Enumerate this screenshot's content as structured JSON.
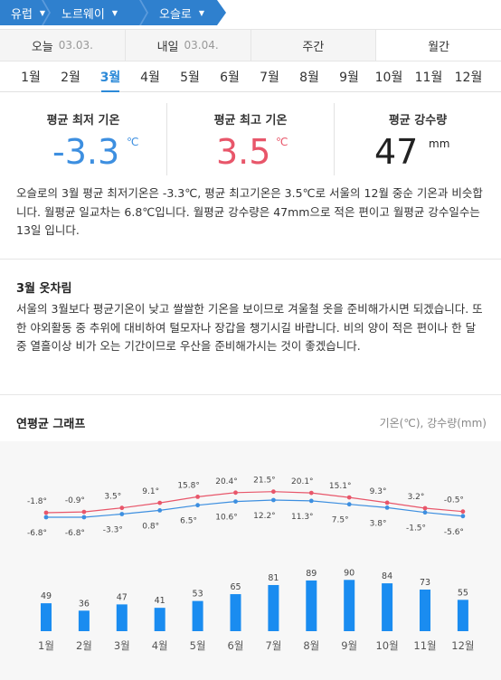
{
  "breadcrumb": [
    {
      "label": "유럽"
    },
    {
      "label": "노르웨이"
    },
    {
      "label": "오슬로"
    }
  ],
  "day_tabs": [
    {
      "label": "오늘",
      "date": "03.03."
    },
    {
      "label": "내일",
      "date": "03.04."
    },
    {
      "label": "주간",
      "date": ""
    },
    {
      "label": "월간",
      "date": ""
    }
  ],
  "months": [
    "1월",
    "2월",
    "3월",
    "4월",
    "5월",
    "6월",
    "7월",
    "8월",
    "9월",
    "10월",
    "11월",
    "12월"
  ],
  "selected_month": "3월",
  "stats": {
    "min": {
      "label": "평균 최저 기온",
      "value": "-3.3",
      "unit": "℃"
    },
    "max": {
      "label": "평균 최고 기온",
      "value": "3.5",
      "unit": "℃"
    },
    "rain": {
      "label": "평균 강수량",
      "value": "47",
      "unit": "mm"
    }
  },
  "description": "오슬로의 3월 평균 최저기온은 -3.3℃, 평균 최고기온은 3.5℃로 서울의 12월 중순 기온과 비슷합니다. 월평균 일교차는 6.8℃입니다. 월평균 강수량은 47mm으로 적은 편이고 월평균 강수일수는 13일 입니다.",
  "clothing": {
    "title": "3월 옷차림",
    "text": "서울의 3월보다 평균기온이 낮고 쌀쌀한 기온을 보이므로 겨울철 옷을 준비해가시면 되겠습니다. 또한 야외활동 중 추위에 대비하여 털모자나 장갑을 챙기시길 바랍니다. 비의 양이 적은 편이나 한 달 중 열흘이상 비가 오는 기간이므로 우산을 준비해가시는 것이 좋겠습니다."
  },
  "graph": {
    "title": "연평균 그래프",
    "unit": "기온(℃), 강수량(mm)"
  },
  "colors": {
    "accent": "#2d8ad8",
    "breadcrumb": "#2f80ce",
    "max": "#e8566a",
    "min": "#3d8fe0",
    "bar": "#1a8cf0"
  },
  "chart_data": {
    "type": "line+bar",
    "categories": [
      "1월",
      "2월",
      "3월",
      "4월",
      "5월",
      "6월",
      "7월",
      "8월",
      "9월",
      "10월",
      "11월",
      "12월"
    ],
    "series": [
      {
        "name": "",
        "type": "line",
        "values": [
          -1.8,
          -0.9,
          3.5,
          9.1,
          15.8,
          20.4,
          21.5,
          20.1,
          15.1,
          9.3,
          3.2,
          -0.5
        ]
      },
      {
        "name": "",
        "type": "line",
        "values": [
          -6.8,
          -6.8,
          -3.3,
          0.8,
          6.5,
          10.6,
          12.2,
          11.3,
          7.5,
          3.8,
          -1.5,
          -5.6
        ]
      },
      {
        "name": "",
        "type": "bar",
        "values": [
          49,
          36,
          47,
          41,
          53,
          65,
          81,
          89,
          90,
          84,
          73,
          55
        ]
      }
    ]
  }
}
